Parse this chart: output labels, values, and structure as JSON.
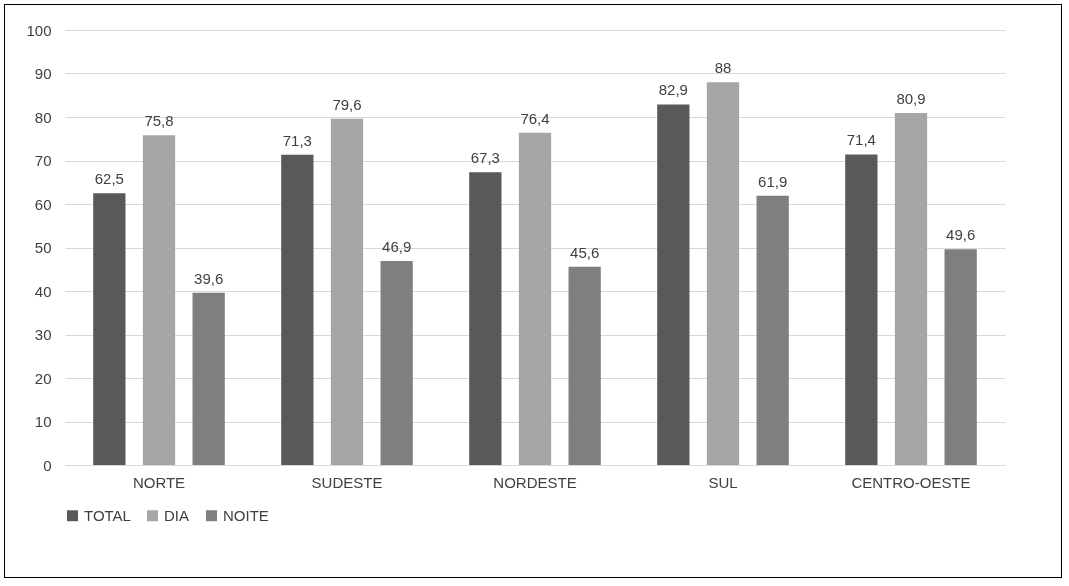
{
  "chart_data": {
    "type": "bar",
    "categories": [
      "NORTE",
      "SUDESTE",
      "NORDESTE",
      "SUL",
      "CENTRO-OESTE"
    ],
    "series": [
      {
        "name": "TOTAL",
        "color": "#595959",
        "values": [
          62.5,
          71.3,
          67.3,
          82.9,
          71.4
        ],
        "value_labels": [
          "62,5",
          "71,3",
          "67,3",
          "82,9",
          "71,4"
        ]
      },
      {
        "name": "DIA",
        "color": "#a6a6a6",
        "values": [
          75.8,
          79.6,
          76.4,
          88,
          80.9
        ],
        "value_labels": [
          "75,8",
          "79,6",
          "76,4",
          "88",
          "80,9"
        ]
      },
      {
        "name": "NOITE",
        "color": "#7f7f7f",
        "values": [
          39.6,
          46.9,
          45.6,
          61.9,
          49.6
        ],
        "value_labels": [
          "39,6",
          "46,9",
          "45,6",
          "61,9",
          "49,6"
        ]
      }
    ],
    "ylim": [
      0,
      100
    ],
    "yticks": [
      0,
      10,
      20,
      30,
      40,
      50,
      60,
      70,
      80,
      90,
      100
    ],
    "grid": "y",
    "legend": "bottom"
  }
}
